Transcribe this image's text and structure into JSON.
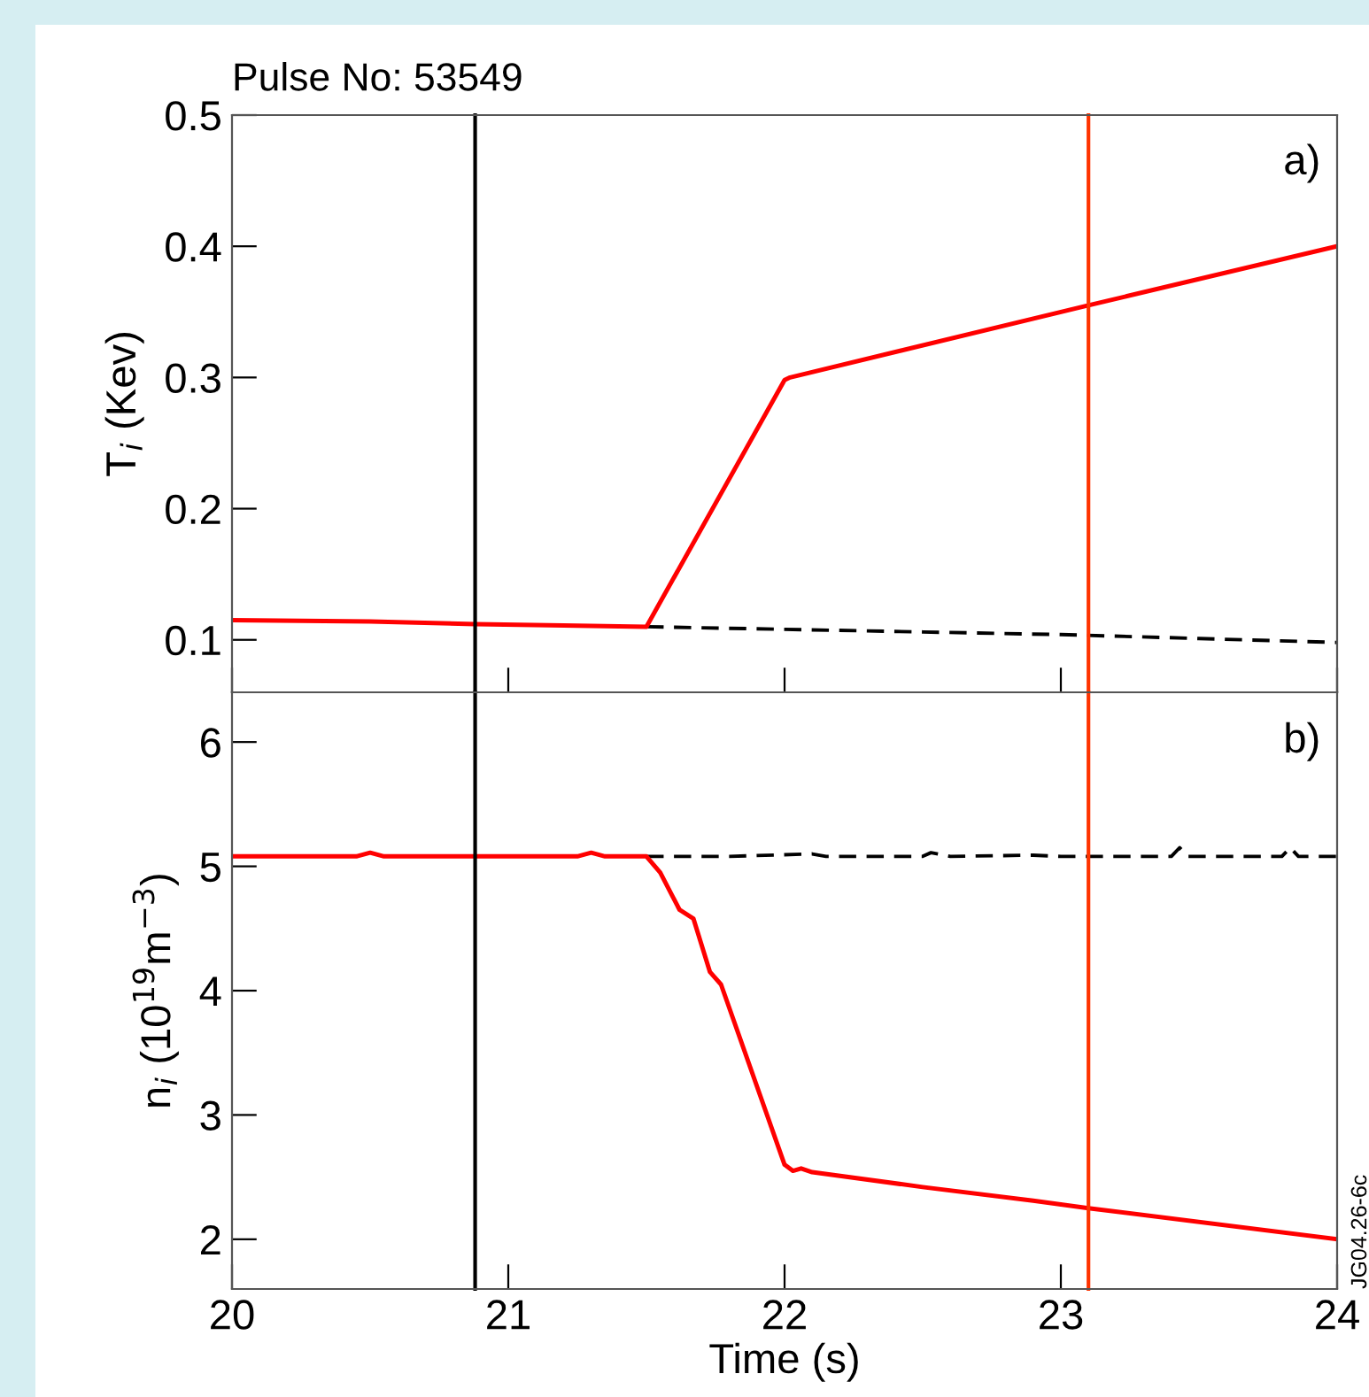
{
  "chart_data": [
    {
      "type": "line",
      "title": "Pulse No: 53549",
      "ylabel": "T$_{i}$ (Kev)",
      "annotations": [
        "a)"
      ],
      "xlim": [
        20,
        24
      ],
      "ylim": [
        0.06,
        0.5
      ],
      "xticks": [
        20,
        21,
        22,
        23,
        24
      ],
      "yticks": [
        0.1,
        0.2,
        0.3,
        0.4,
        0.5
      ],
      "tick_labels": "y",
      "grid": false,
      "legend": false,
      "series": [
        {
          "color": "#000000",
          "line_style": "dashed",
          "x": [
            21.5,
            22,
            22.5,
            23,
            23.5,
            24
          ],
          "values": [
            0.11,
            0.108,
            0.106,
            0.104,
            0.101,
            0.098
          ]
        },
        {
          "color": "#ff0000",
          "line_style": "solid",
          "x": [
            20,
            20.5,
            20.88,
            21.2,
            21.5,
            22.0,
            22.02,
            23.1,
            24
          ],
          "values": [
            0.115,
            0.114,
            0.112,
            0.111,
            0.11,
            0.298,
            0.3,
            0.355,
            0.4
          ]
        }
      ],
      "ref_lines": [
        {
          "axis": "x",
          "value": 20.88,
          "color": "#000000"
        },
        {
          "axis": "x",
          "value": 23.1,
          "color": "#ff3300"
        }
      ]
    },
    {
      "type": "line",
      "xlabel": "Time (s)",
      "ylabel": "n$_{i}$ (10$^{19}$m$^{−3}$)",
      "annotations": [
        "b)",
        "JG04.26-6c"
      ],
      "xlim": [
        20,
        24
      ],
      "ylim": [
        1.6,
        6.4
      ],
      "xticks": [
        20,
        21,
        22,
        23,
        24
      ],
      "yticks": [
        2,
        3,
        4,
        5,
        6
      ],
      "grid": false,
      "legend": false,
      "series": [
        {
          "color": "#000000",
          "line_style": "dashed",
          "x": [
            21.5,
            21.8,
            22.1,
            22.15,
            22.5,
            22.53,
            22.6,
            22.9,
            23.0,
            23.4,
            23.43,
            23.46,
            23.8,
            23.83,
            23.86,
            24
          ],
          "values": [
            5.08,
            5.08,
            5.1,
            5.08,
            5.08,
            5.11,
            5.08,
            5.09,
            5.08,
            5.08,
            5.15,
            5.08,
            5.08,
            5.15,
            5.08,
            5.08
          ]
        },
        {
          "color": "#ff0000",
          "line_style": "solid",
          "x": [
            20,
            20.45,
            20.5,
            20.55,
            21.25,
            21.3,
            21.35,
            21.5,
            21.55,
            21.62,
            21.67,
            21.73,
            21.77,
            22.0,
            22.03,
            22.06,
            22.1,
            22.5,
            22.9,
            23.1,
            24
          ],
          "values": [
            5.08,
            5.08,
            5.11,
            5.08,
            5.08,
            5.11,
            5.08,
            5.08,
            4.95,
            4.65,
            4.58,
            4.15,
            4.05,
            2.6,
            2.55,
            2.57,
            2.54,
            2.42,
            2.31,
            2.25,
            2.0
          ]
        }
      ],
      "ref_lines": [
        {
          "axis": "x",
          "value": 20.88,
          "color": "#000000"
        },
        {
          "axis": "x",
          "value": 23.1,
          "color": "#ff3300"
        }
      ]
    }
  ]
}
